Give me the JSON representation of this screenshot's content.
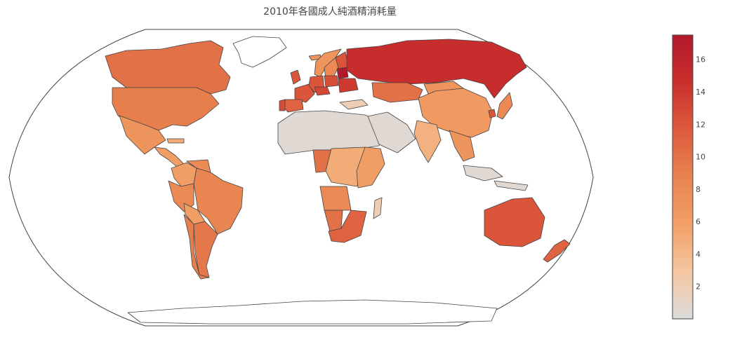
{
  "title": "2010年各國成人純酒精消耗量",
  "colors": {
    "background": "#ffffff",
    "no_data": "#ffffff",
    "outline": "#444444",
    "scale": [
      "#dcdcdc",
      "#f5c6a0",
      "#f2a067",
      "#e8834f",
      "#dd5a3d",
      "#c9302c",
      "#b2182b"
    ]
  },
  "colorbar": {
    "min": 0,
    "max": 17.5,
    "ticks": [
      2,
      4,
      6,
      8,
      10,
      12,
      14,
      16
    ]
  },
  "chart_data": {
    "type": "choropleth",
    "title": "2010年各國成人純酒精消耗量",
    "projection": "robinson",
    "value_range": [
      0,
      17.5
    ],
    "regions": [
      {
        "name": "Canada",
        "value": 10
      },
      {
        "name": "United States",
        "value": 9
      },
      {
        "name": "Mexico",
        "value": 7
      },
      {
        "name": "Central America",
        "value": 6
      },
      {
        "name": "Cuba",
        "value": 5
      },
      {
        "name": "Colombia",
        "value": 6
      },
      {
        "name": "Venezuela",
        "value": 8
      },
      {
        "name": "Brazil",
        "value": 8.5
      },
      {
        "name": "Peru",
        "value": 8
      },
      {
        "name": "Bolivia",
        "value": 6
      },
      {
        "name": "Chile",
        "value": 9
      },
      {
        "name": "Argentina",
        "value": 9.5
      },
      {
        "name": "Greenland",
        "value": null
      },
      {
        "name": "Iceland",
        "value": 7
      },
      {
        "name": "Norway",
        "value": 7
      },
      {
        "name": "Sweden",
        "value": 8
      },
      {
        "name": "Finland",
        "value": 12
      },
      {
        "name": "United Kingdom",
        "value": 12
      },
      {
        "name": "France",
        "value": 12
      },
      {
        "name": "Spain",
        "value": 11
      },
      {
        "name": "Portugal",
        "value": 12.5
      },
      {
        "name": "Germany",
        "value": 12
      },
      {
        "name": "Poland",
        "value": 12.5
      },
      {
        "name": "Czech Republic",
        "value": 13
      },
      {
        "name": "Belarus",
        "value": 17.5
      },
      {
        "name": "Ukraine",
        "value": 14
      },
      {
        "name": "Russia",
        "value": 15
      },
      {
        "name": "Kazakhstan",
        "value": 10
      },
      {
        "name": "Turkey",
        "value": 2
      },
      {
        "name": "Mongolia",
        "value": 7
      },
      {
        "name": "China",
        "value": 6.5
      },
      {
        "name": "South Korea",
        "value": 12
      },
      {
        "name": "Japan",
        "value": 8
      },
      {
        "name": "India",
        "value": 4.5
      },
      {
        "name": "Southeast Asia",
        "value": 7
      },
      {
        "name": "Indonesia",
        "value": 0.5
      },
      {
        "name": "Australia",
        "value": 12
      },
      {
        "name": "New Zealand",
        "value": 11
      },
      {
        "name": "North Africa",
        "value": 0.5
      },
      {
        "name": "Arabian Peninsula",
        "value": 0.5
      },
      {
        "name": "Nigeria",
        "value": 10
      },
      {
        "name": "Central Africa",
        "value": 5
      },
      {
        "name": "East Africa",
        "value": 6
      },
      {
        "name": "Angola",
        "value": 8
      },
      {
        "name": "Namibia",
        "value": 10
      },
      {
        "name": "South Africa",
        "value": 11
      },
      {
        "name": "Madagascar",
        "value": 2
      },
      {
        "name": "Antarctica",
        "value": null
      }
    ]
  }
}
